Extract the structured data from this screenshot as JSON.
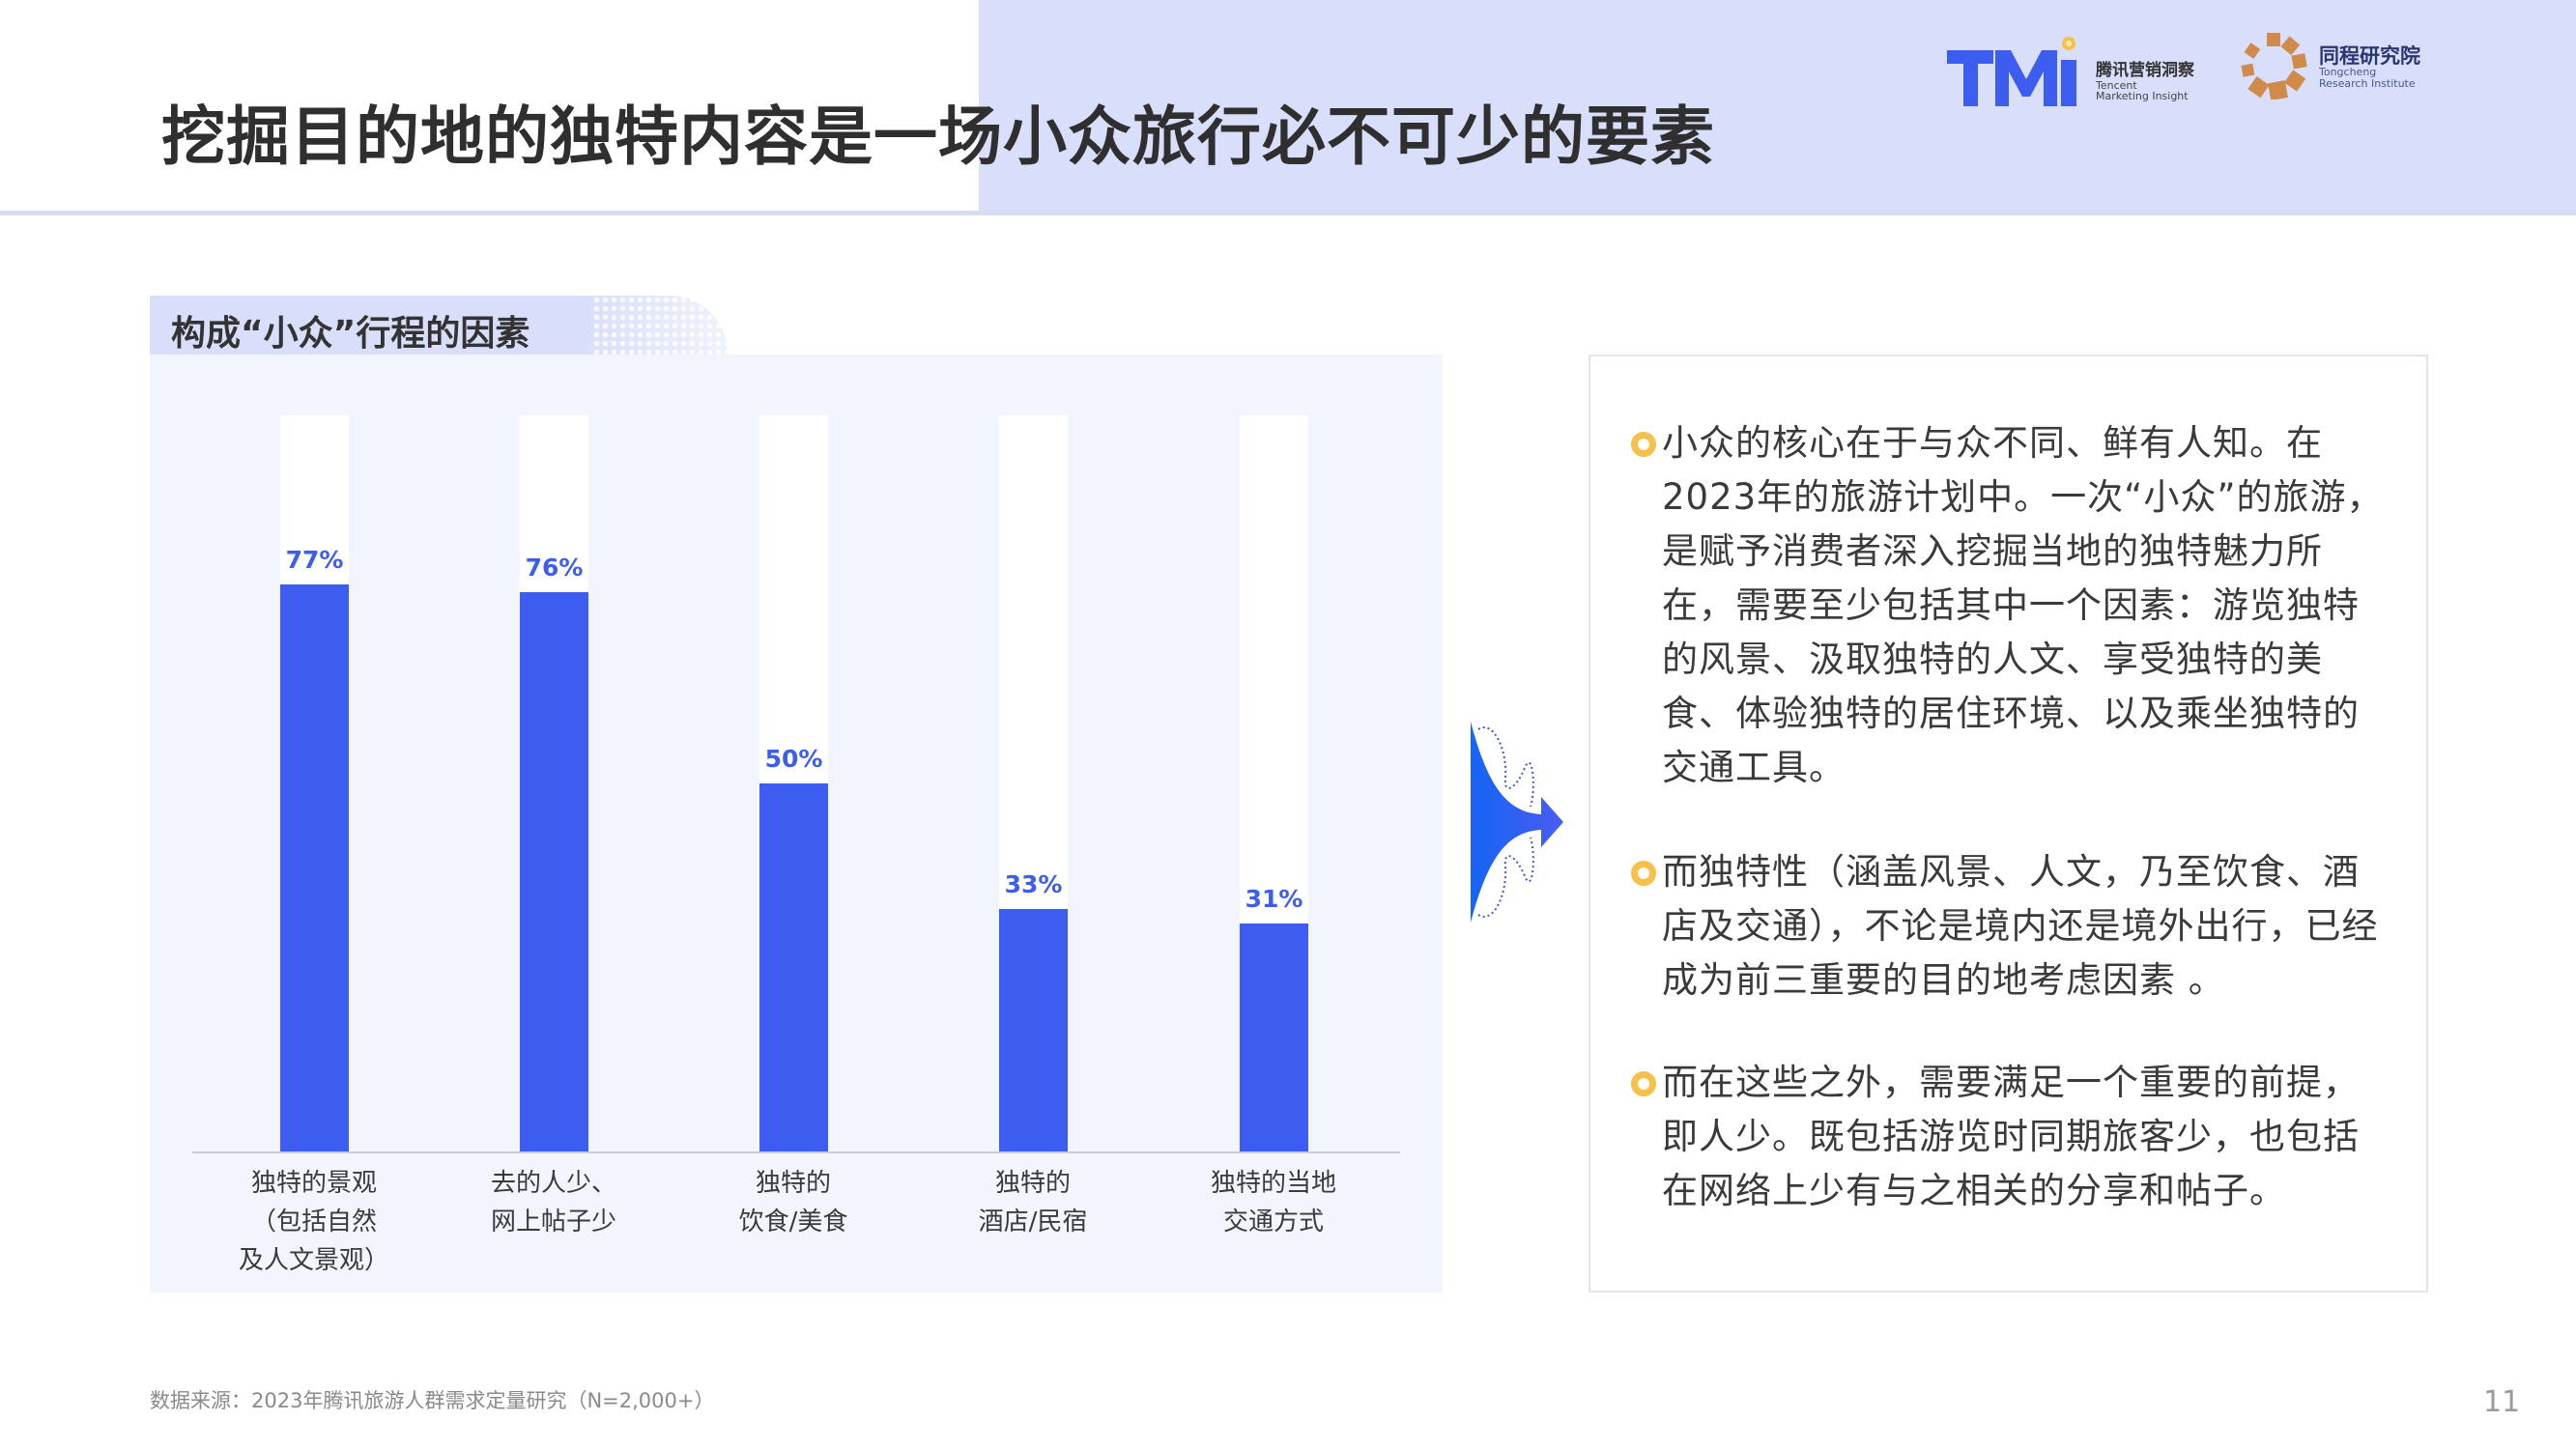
{
  "header": {
    "title": "挖掘目的地的独特内容是一场小众旅行必不可少的要素",
    "logos": [
      {
        "name": "TMI",
        "cn": "腾讯营销洞察",
        "en_line1": "Tencent",
        "en_line2": "Marketing Insight",
        "icon": "tmi-logo-icon"
      },
      {
        "name": "Tongcheng",
        "cn": "同程研究院",
        "en_line1": "Tongcheng",
        "en_line2": "Research Institute",
        "icon": "tongcheng-logo-icon"
      }
    ]
  },
  "chart": {
    "section_label": "构成“小众”行程的因素"
  },
  "chart_data": {
    "type": "bar",
    "title": "构成“小众”行程的因素",
    "categories": [
      "独特的景观\n（包括自然\n及人文景观）",
      "去的人少、\n网上帖子少",
      "独特的\n饮食/美食",
      "独特的\n酒店/民宿",
      "独特的当地\n交通方式"
    ],
    "values": [
      77,
      76,
      50,
      33,
      31
    ],
    "value_labels": [
      "77%",
      "76%",
      "50%",
      "33%",
      "31%"
    ],
    "xlabel": "",
    "ylabel": "",
    "ylim": [
      0,
      100
    ],
    "unit": "%",
    "grid": false,
    "legend": "none",
    "bar_color": "#3d5cf0",
    "track_color": "#ffffff"
  },
  "insights": {
    "bullets": [
      "小众的核心在于与众不同、鲜有人知。在2023年的旅游计划中。一次“小众”的旅游，是赋予消费者深入挖掘当地的独特魅力所在，需要至少包括其中一个因素：游览独特的风景、汲取独特的人文、享受独特的美食、体验独特的居住环境、以及乘坐独特的交通工具。",
      "而独特性（涵盖风景、人文，乃至饮食、酒店及交通），不论是境内还是境外出行，已经成为前三重要的目的地考虑因素 。",
      "而在这些之外，需要满足一个重要的前提，即人少。既包括游览时同期旅客少，也包括在网络上少有与之相关的分享和帖子。"
    ]
  },
  "footer": {
    "source": "数据来源：2023年腾讯旅游人群需求定量研究（N=2,000+）",
    "page_number": "11"
  },
  "colors": {
    "accent_blue": "#3d5cf0",
    "header_band": "#d9defb",
    "chart_panel_bg": "#f2f5fe",
    "bullet_yellow": "#f7c04a",
    "logo_orange": "#d08a4a"
  }
}
